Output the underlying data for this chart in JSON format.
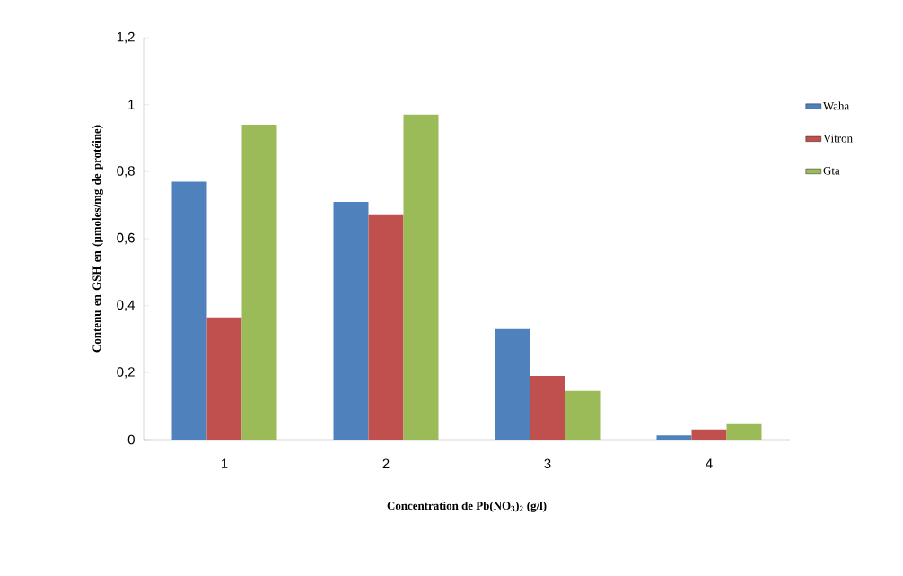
{
  "chart_data": {
    "type": "bar",
    "xlabel": "Concentration de Pb(NO$_{3}$)$_{2}$ (g/l)",
    "ylabel": "Contenu en GSH en (µmoles/mg de protéine)",
    "categories": [
      "1",
      "2",
      "3",
      "4"
    ],
    "series": [
      {
        "name": "Waha",
        "color": "#4f81bd",
        "values": [
          0.77,
          0.71,
          0.33,
          0.013
        ]
      },
      {
        "name": "Vitron",
        "color": "#c0504d",
        "values": [
          0.365,
          0.67,
          0.19,
          0.03
        ]
      },
      {
        "name": "Gta",
        "color": "#9bbb59",
        "values": [
          0.94,
          0.97,
          0.145,
          0.046
        ]
      }
    ],
    "ylim": [
      0,
      1.2
    ],
    "yticks": [
      0,
      {
        "value": 0.2,
        "label": "0,2"
      },
      {
        "value": 0.4,
        "label": "0,4"
      },
      {
        "value": 0.6,
        "label": "0,6"
      },
      {
        "value": 0.8,
        "label": "0,8"
      },
      1,
      {
        "value": 1.2,
        "label": "1,2"
      }
    ],
    "legend": "right"
  }
}
